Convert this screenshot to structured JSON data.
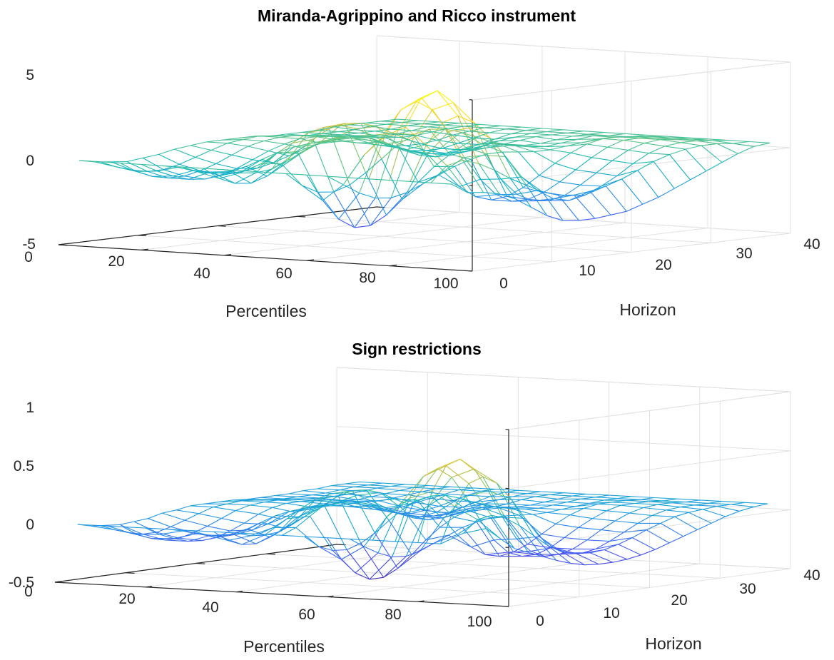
{
  "chart_data": [
    {
      "type": "mesh3d",
      "title": "Miranda-Agrippino and Ricco instrument",
      "xlabel": "Percentiles",
      "ylabel": "Horizon",
      "zlabel": "",
      "x_ticks": [
        "20",
        "40",
        "60",
        "80",
        "100"
      ],
      "y_ticks": [
        "0",
        "10",
        "20",
        "30",
        "40"
      ],
      "z_ticks": [
        "-5",
        "0",
        "5"
      ],
      "x_origin_label": "0",
      "xlim": [
        0,
        100
      ],
      "ylim": [
        0,
        40
      ],
      "zlim": [
        -5,
        5
      ],
      "grid": true,
      "colormap": "parula",
      "percentiles": [
        5,
        10,
        15,
        20,
        25,
        30,
        35,
        40,
        45,
        50,
        55,
        60,
        65,
        70,
        75,
        80,
        85,
        90,
        95
      ],
      "horizons": [
        0,
        2,
        4,
        6,
        8,
        10,
        12,
        14,
        16,
        18,
        20,
        22,
        24,
        26,
        28,
        30,
        32,
        34,
        36,
        38,
        40
      ],
      "z": [
        [
          0.0,
          -0.6,
          -0.7,
          -0.9,
          -1.3,
          -1.9,
          -2.5,
          -2.9,
          -3.0,
          -3.0,
          -2.9,
          -2.8,
          -2.5,
          -2.2,
          -1.8,
          -1.4,
          -1.0,
          -0.6,
          -0.2,
          0.1,
          0.2
        ],
        [
          0.0,
          0.9,
          1.1,
          0.8,
          0.3,
          -0.3,
          -0.8,
          -1.3,
          -1.6,
          -1.7,
          -1.6,
          -1.4,
          -1.1,
          -0.7,
          -0.3,
          0.0,
          0.2,
          0.3,
          0.3,
          0.2,
          0.2
        ],
        [
          0.0,
          2.0,
          3.2,
          3.5,
          3.0,
          2.0,
          0.8,
          -0.5,
          -1.4,
          -2.0,
          -2.2,
          -2.0,
          -1.6,
          -1.1,
          -0.5,
          0.0,
          0.3,
          0.4,
          0.4,
          0.3,
          0.2
        ],
        [
          0.0,
          3.0,
          4.6,
          4.9,
          4.1,
          2.5,
          0.8,
          -0.7,
          -1.7,
          -2.2,
          -2.3,
          -2.1,
          -1.6,
          -1.0,
          -0.4,
          0.1,
          0.4,
          0.5,
          0.4,
          0.3,
          0.2
        ],
        [
          0.0,
          2.4,
          3.8,
          4.2,
          3.6,
          2.2,
          0.6,
          -0.8,
          -1.8,
          -2.3,
          -2.3,
          -2.0,
          -1.5,
          -0.9,
          -0.3,
          0.2,
          0.5,
          0.5,
          0.4,
          0.3,
          0.2
        ],
        [
          0.0,
          1.2,
          2.0,
          2.2,
          1.7,
          0.8,
          -0.3,
          -1.3,
          -2.0,
          -2.3,
          -2.2,
          -1.8,
          -1.2,
          -0.6,
          -0.1,
          0.3,
          0.5,
          0.5,
          0.4,
          0.3,
          0.2
        ],
        [
          0.0,
          -0.6,
          -1.2,
          -1.6,
          -1.7,
          -1.5,
          -1.1,
          -0.7,
          -0.3,
          0.0,
          0.2,
          0.2,
          0.1,
          0.0,
          0.0,
          0.1,
          0.2,
          0.3,
          0.3,
          0.2,
          0.2
        ],
        [
          0.0,
          -1.6,
          -2.8,
          -3.4,
          -3.4,
          -2.9,
          -2.1,
          -1.2,
          -0.4,
          0.2,
          0.5,
          0.6,
          0.5,
          0.3,
          0.1,
          0.0,
          0.1,
          0.2,
          0.3,
          0.2,
          0.2
        ],
        [
          0.0,
          -0.8,
          -1.3,
          -1.4,
          -1.1,
          -0.5,
          0.2,
          0.9,
          1.4,
          1.6,
          1.5,
          1.2,
          0.8,
          0.4,
          0.1,
          0.0,
          0.0,
          0.1,
          0.2,
          0.2,
          0.2
        ],
        [
          0.0,
          0.4,
          1.0,
          1.6,
          2.1,
          2.3,
          2.2,
          1.9,
          1.4,
          0.9,
          0.5,
          0.2,
          0.0,
          -0.1,
          -0.1,
          0.0,
          0.1,
          0.2,
          0.2,
          0.2,
          0.2
        ],
        [
          0.0,
          0.3,
          0.8,
          1.3,
          1.8,
          2.0,
          2.0,
          1.7,
          1.2,
          0.6,
          0.1,
          -0.3,
          -0.5,
          -0.5,
          -0.4,
          -0.2,
          0.0,
          0.1,
          0.2,
          0.2,
          0.2
        ],
        [
          0.0,
          -0.3,
          -0.4,
          -0.3,
          0.1,
          0.5,
          0.9,
          1.1,
          1.1,
          0.9,
          0.5,
          0.1,
          -0.3,
          -0.5,
          -0.6,
          -0.5,
          -0.3,
          -0.1,
          0.1,
          0.2,
          0.2
        ],
        [
          0.0,
          -0.7,
          -1.1,
          -1.2,
          -0.9,
          -0.4,
          0.2,
          0.6,
          0.8,
          0.8,
          0.6,
          0.3,
          -0.1,
          -0.4,
          -0.5,
          -0.5,
          -0.3,
          -0.1,
          0.1,
          0.2,
          0.2
        ],
        [
          0.0,
          -0.4,
          -0.6,
          -0.6,
          -0.4,
          -0.1,
          0.2,
          0.4,
          0.5,
          0.5,
          0.4,
          0.2,
          0.0,
          -0.2,
          -0.3,
          -0.3,
          -0.2,
          0.0,
          0.1,
          0.2,
          0.2
        ],
        [
          0.0,
          -0.2,
          -0.5,
          -0.7,
          -0.9,
          -0.9,
          -0.8,
          -0.6,
          -0.3,
          0.0,
          0.2,
          0.3,
          0.3,
          0.2,
          0.1,
          0.0,
          0.0,
          0.1,
          0.2,
          0.2,
          0.2
        ],
        [
          0.0,
          -0.5,
          -0.9,
          -1.2,
          -1.3,
          -1.2,
          -0.9,
          -0.5,
          -0.1,
          0.2,
          0.4,
          0.4,
          0.3,
          0.2,
          0.1,
          0.0,
          0.0,
          0.1,
          0.2,
          0.2,
          0.2
        ],
        [
          0.0,
          -0.6,
          -1.0,
          -1.2,
          -1.2,
          -1.0,
          -0.7,
          -0.3,
          0.1,
          0.3,
          0.4,
          0.4,
          0.3,
          0.2,
          0.1,
          0.1,
          0.1,
          0.1,
          0.2,
          0.2,
          0.2
        ],
        [
          0.0,
          -0.4,
          -0.7,
          -0.9,
          -0.9,
          -0.7,
          -0.4,
          -0.1,
          0.2,
          0.3,
          0.4,
          0.3,
          0.2,
          0.1,
          0.1,
          0.1,
          0.1,
          0.2,
          0.2,
          0.2,
          0.2
        ],
        [
          0.0,
          -0.2,
          -0.3,
          -0.4,
          -0.3,
          -0.2,
          0.0,
          0.1,
          0.2,
          0.2,
          0.2,
          0.2,
          0.1,
          0.1,
          0.1,
          0.1,
          0.2,
          0.2,
          0.2,
          0.2,
          0.2
        ]
      ]
    },
    {
      "type": "mesh3d",
      "title": "Sign restrictions",
      "xlabel": "Percentiles",
      "ylabel": "Horizon",
      "zlabel": "",
      "x_ticks": [
        "20",
        "40",
        "60",
        "80",
        "100"
      ],
      "y_ticks": [
        "0",
        "10",
        "20",
        "30",
        "40"
      ],
      "z_ticks": [
        "-0.5",
        "0",
        "0.5",
        "1"
      ],
      "x_origin_label": "0",
      "xlim": [
        0,
        100
      ],
      "ylim": [
        0,
        40
      ],
      "zlim": [
        -0.5,
        1
      ],
      "grid": true,
      "colormap": "parula",
      "percentiles": [
        5,
        10,
        15,
        20,
        25,
        30,
        35,
        40,
        45,
        50,
        55,
        60,
        65,
        70,
        75,
        80,
        85,
        90,
        95
      ],
      "horizons": [
        0,
        2,
        4,
        6,
        8,
        10,
        12,
        14,
        16,
        18,
        20,
        22,
        24,
        26,
        28,
        30,
        32,
        34,
        36,
        38,
        40
      ],
      "z": [
        [
          0.15,
          0.05,
          -0.05,
          -0.1,
          -0.15,
          -0.2,
          -0.24,
          -0.27,
          -0.28,
          -0.28,
          -0.27,
          -0.25,
          -0.22,
          -0.18,
          -0.14,
          -0.1,
          -0.06,
          -0.02,
          0.01,
          0.03,
          0.04
        ],
        [
          0.1,
          0.2,
          0.22,
          0.18,
          0.1,
          0.0,
          -0.1,
          -0.17,
          -0.2,
          -0.21,
          -0.2,
          -0.17,
          -0.13,
          -0.08,
          -0.04,
          0.0,
          0.02,
          0.03,
          0.04,
          0.04,
          0.04
        ],
        [
          0.0,
          0.3,
          0.48,
          0.52,
          0.45,
          0.3,
          0.12,
          -0.05,
          -0.16,
          -0.22,
          -0.24,
          -0.22,
          -0.17,
          -0.11,
          -0.05,
          0.0,
          0.03,
          0.04,
          0.04,
          0.04,
          0.04
        ],
        [
          0.0,
          0.42,
          0.62,
          0.66,
          0.56,
          0.36,
          0.12,
          -0.08,
          -0.2,
          -0.26,
          -0.26,
          -0.23,
          -0.17,
          -0.1,
          -0.04,
          0.01,
          0.04,
          0.05,
          0.05,
          0.04,
          0.04
        ],
        [
          0.0,
          0.35,
          0.52,
          0.57,
          0.48,
          0.3,
          0.09,
          -0.1,
          -0.22,
          -0.27,
          -0.27,
          -0.23,
          -0.16,
          -0.09,
          -0.03,
          0.02,
          0.05,
          0.05,
          0.05,
          0.04,
          0.04
        ],
        [
          0.0,
          0.18,
          0.28,
          0.3,
          0.23,
          0.1,
          -0.05,
          -0.17,
          -0.25,
          -0.28,
          -0.26,
          -0.21,
          -0.14,
          -0.07,
          -0.01,
          0.03,
          0.05,
          0.05,
          0.05,
          0.04,
          0.04
        ],
        [
          0.0,
          -0.08,
          -0.15,
          -0.2,
          -0.21,
          -0.18,
          -0.13,
          -0.08,
          -0.03,
          0.0,
          0.02,
          0.02,
          0.01,
          0.0,
          0.0,
          0.01,
          0.02,
          0.03,
          0.04,
          0.04,
          0.04
        ],
        [
          0.0,
          -0.2,
          -0.33,
          -0.4,
          -0.4,
          -0.34,
          -0.24,
          -0.13,
          -0.04,
          0.03,
          0.07,
          0.08,
          0.07,
          0.04,
          0.02,
          0.01,
          0.02,
          0.03,
          0.04,
          0.04,
          0.04
        ],
        [
          0.0,
          -0.1,
          -0.15,
          -0.16,
          -0.12,
          -0.05,
          0.04,
          0.12,
          0.18,
          0.2,
          0.19,
          0.15,
          0.1,
          0.05,
          0.02,
          0.01,
          0.01,
          0.02,
          0.03,
          0.04,
          0.04
        ],
        [
          0.0,
          0.05,
          0.13,
          0.21,
          0.27,
          0.3,
          0.29,
          0.25,
          0.18,
          0.12,
          0.06,
          0.02,
          0.0,
          -0.01,
          -0.01,
          0.0,
          0.01,
          0.03,
          0.04,
          0.04,
          0.04
        ],
        [
          0.0,
          0.04,
          0.1,
          0.17,
          0.23,
          0.26,
          0.26,
          0.22,
          0.15,
          0.08,
          0.01,
          -0.04,
          -0.07,
          -0.07,
          -0.05,
          -0.02,
          0.0,
          0.02,
          0.03,
          0.04,
          0.04
        ],
        [
          0.0,
          -0.04,
          -0.05,
          -0.04,
          0.01,
          0.07,
          0.12,
          0.14,
          0.14,
          0.11,
          0.06,
          0.01,
          -0.04,
          -0.07,
          -0.08,
          -0.07,
          -0.04,
          -0.01,
          0.02,
          0.04,
          0.04
        ],
        [
          0.0,
          -0.09,
          -0.14,
          -0.15,
          -0.11,
          -0.05,
          0.03,
          0.08,
          0.1,
          0.1,
          0.08,
          0.04,
          -0.01,
          -0.05,
          -0.07,
          -0.06,
          -0.04,
          -0.01,
          0.02,
          0.04,
          0.04
        ],
        [
          0.0,
          -0.05,
          -0.08,
          -0.08,
          -0.05,
          -0.01,
          0.03,
          0.05,
          0.06,
          0.06,
          0.05,
          0.03,
          0.0,
          -0.03,
          -0.04,
          -0.04,
          -0.02,
          0.0,
          0.02,
          0.04,
          0.04
        ],
        [
          0.0,
          -0.03,
          -0.07,
          -0.1,
          -0.12,
          -0.12,
          -0.1,
          -0.07,
          -0.04,
          0.0,
          0.03,
          0.04,
          0.04,
          0.03,
          0.01,
          0.0,
          0.01,
          0.02,
          0.03,
          0.04,
          0.04
        ],
        [
          0.0,
          -0.07,
          -0.12,
          -0.16,
          -0.17,
          -0.16,
          -0.12,
          -0.07,
          -0.01,
          0.03,
          0.05,
          0.05,
          0.04,
          0.03,
          0.01,
          0.0,
          0.01,
          0.02,
          0.03,
          0.04,
          0.04
        ],
        [
          0.0,
          -0.08,
          -0.13,
          -0.16,
          -0.16,
          -0.13,
          -0.09,
          -0.04,
          0.01,
          0.04,
          0.05,
          0.05,
          0.04,
          0.03,
          0.02,
          0.02,
          0.02,
          0.03,
          0.04,
          0.04,
          0.04
        ],
        [
          0.0,
          -0.05,
          -0.09,
          -0.12,
          -0.12,
          -0.09,
          -0.05,
          -0.01,
          0.03,
          0.04,
          0.05,
          0.04,
          0.03,
          0.02,
          0.02,
          0.02,
          0.02,
          0.03,
          0.04,
          0.04,
          0.04
        ],
        [
          0.0,
          -0.03,
          -0.04,
          -0.05,
          -0.04,
          -0.03,
          0.0,
          0.01,
          0.03,
          0.03,
          0.03,
          0.03,
          0.02,
          0.02,
          0.02,
          0.02,
          0.03,
          0.03,
          0.04,
          0.04,
          0.04
        ]
      ]
    }
  ]
}
